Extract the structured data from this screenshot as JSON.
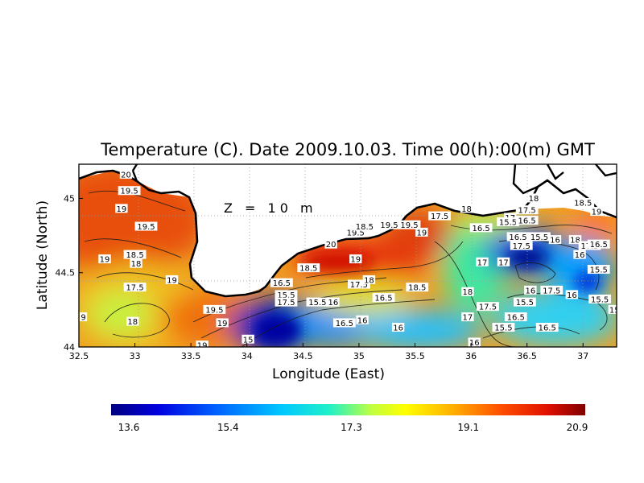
{
  "title": "Temperature (C). Date 2009.10.03. Time 00(h):00(m) GMT",
  "depth_label": "Z = 10 m",
  "xlabel": "Longitude (East)",
  "ylabel": "Latitude (North)",
  "x_ticks": [
    "32.5",
    "33",
    "33.5",
    "34",
    "34.5",
    "35",
    "35.5",
    "36",
    "36.5",
    "37"
  ],
  "y_ticks": [
    "44",
    "44.5",
    "45"
  ],
  "colorbar_ticks": [
    "13.6",
    "15.4",
    "17.3",
    "19.1",
    "20.9"
  ],
  "colors": {
    "background": "#ffffff",
    "land": "#ffffff",
    "coastline": "#000000",
    "contour": "#1a1a1a",
    "grid": "#9a9a9a"
  },
  "chart_data": {
    "type": "heatmap",
    "title": "Temperature (C). Date 2009.10.03. Time 00(h):00(m) GMT",
    "xlabel": "Longitude (East)",
    "ylabel": "Latitude (North)",
    "xlim": [
      32.5,
      37.3
    ],
    "ylim": [
      44.0,
      45.23
    ],
    "value_range": [
      13.6,
      20.9
    ],
    "colormap": [
      "#000080",
      "#0000e0",
      "#0060ff",
      "#00c8ff",
      "#20f0c8",
      "#c0ff40",
      "#ffff00",
      "#ffb000",
      "#ff5000",
      "#e01000",
      "#800000"
    ],
    "colorbar_ticks": [
      13.6,
      15.4,
      17.3,
      19.1,
      20.9
    ],
    "grid": true,
    "contour_labels": [
      {
        "text": "20",
        "lon": 32.92,
        "lat": 45.16
      },
      {
        "text": "19.5",
        "lon": 32.95,
        "lat": 45.05
      },
      {
        "text": "19",
        "lon": 32.88,
        "lat": 44.93
      },
      {
        "text": "19.5",
        "lon": 33.1,
        "lat": 44.81
      },
      {
        "text": "18.5",
        "lon": 33.0,
        "lat": 44.62
      },
      {
        "text": "18",
        "lon": 33.01,
        "lat": 44.56
      },
      {
        "text": "19",
        "lon": 32.73,
        "lat": 44.59
      },
      {
        "text": "17.5",
        "lon": 33.0,
        "lat": 44.4
      },
      {
        "text": "19",
        "lon": 33.33,
        "lat": 44.45
      },
      {
        "text": "18",
        "lon": 32.98,
        "lat": 44.17
      },
      {
        "text": "9",
        "lon": 32.54,
        "lat": 44.2
      },
      {
        "text": "19.5",
        "lon": 33.71,
        "lat": 44.25
      },
      {
        "text": "19",
        "lon": 33.78,
        "lat": 44.16
      },
      {
        "text": "19",
        "lon": 33.6,
        "lat": 44.01
      },
      {
        "text": "15",
        "lon": 34.01,
        "lat": 44.05
      },
      {
        "text": "16.5",
        "lon": 34.31,
        "lat": 44.43
      },
      {
        "text": "15.5",
        "lon": 34.35,
        "lat": 44.35
      },
      {
        "text": "17.5",
        "lon": 34.35,
        "lat": 44.3
      },
      {
        "text": "15.5",
        "lon": 34.63,
        "lat": 44.3
      },
      {
        "text": "16",
        "lon": 34.77,
        "lat": 44.3
      },
      {
        "text": "18.5",
        "lon": 34.55,
        "lat": 44.53
      },
      {
        "text": "20",
        "lon": 34.75,
        "lat": 44.69
      },
      {
        "text": "19.5",
        "lon": 34.97,
        "lat": 44.77
      },
      {
        "text": "18.5",
        "lon": 35.05,
        "lat": 44.81
      },
      {
        "text": "19.5",
        "lon": 35.27,
        "lat": 44.82
      },
      {
        "text": "19.5",
        "lon": 35.45,
        "lat": 44.82
      },
      {
        "text": "19",
        "lon": 35.56,
        "lat": 44.77
      },
      {
        "text": "19",
        "lon": 34.97,
        "lat": 44.59
      },
      {
        "text": "17.5",
        "lon": 35.0,
        "lat": 44.42
      },
      {
        "text": "18",
        "lon": 35.09,
        "lat": 44.45
      },
      {
        "text": "16.5",
        "lon": 35.22,
        "lat": 44.33
      },
      {
        "text": "18.5",
        "lon": 35.52,
        "lat": 44.4
      },
      {
        "text": "16.5",
        "lon": 34.87,
        "lat": 44.16
      },
      {
        "text": "16",
        "lon": 35.03,
        "lat": 44.18
      },
      {
        "text": "16",
        "lon": 35.35,
        "lat": 44.13
      },
      {
        "text": "17.5",
        "lon": 35.72,
        "lat": 44.88
      },
      {
        "text": "18",
        "lon": 35.96,
        "lat": 44.93
      },
      {
        "text": "16.5",
        "lon": 36.09,
        "lat": 44.8
      },
      {
        "text": "17",
        "lon": 36.1,
        "lat": 44.57
      },
      {
        "text": "17",
        "lon": 36.29,
        "lat": 44.57
      },
      {
        "text": "18",
        "lon": 35.97,
        "lat": 44.37
      },
      {
        "text": "17.5",
        "lon": 36.15,
        "lat": 44.27
      },
      {
        "text": "17",
        "lon": 35.97,
        "lat": 44.2
      },
      {
        "text": "16",
        "lon": 36.03,
        "lat": 44.03
      },
      {
        "text": "15.5",
        "lon": 36.29,
        "lat": 44.13
      },
      {
        "text": "16.5",
        "lon": 36.4,
        "lat": 44.2
      },
      {
        "text": "16.5",
        "lon": 36.68,
        "lat": 44.13
      },
      {
        "text": "15.5",
        "lon": 36.48,
        "lat": 44.3
      },
      {
        "text": "16",
        "lon": 36.53,
        "lat": 44.38
      },
      {
        "text": "17.5",
        "lon": 36.72,
        "lat": 44.38
      },
      {
        "text": "16",
        "lon": 36.9,
        "lat": 44.35
      },
      {
        "text": "15.5",
        "lon": 37.15,
        "lat": 44.32
      },
      {
        "text": "15.5",
        "lon": 37.14,
        "lat": 44.52
      },
      {
        "text": "16",
        "lon": 36.97,
        "lat": 44.62
      },
      {
        "text": "18",
        "lon": 36.93,
        "lat": 44.72
      },
      {
        "text": "17.5",
        "lon": 37.06,
        "lat": 44.68
      },
      {
        "text": "16.5",
        "lon": 37.14,
        "lat": 44.69
      },
      {
        "text": "19",
        "lon": 37.12,
        "lat": 44.91
      },
      {
        "text": "18.5",
        "lon": 37.0,
        "lat": 44.97
      },
      {
        "text": "18",
        "lon": 36.56,
        "lat": 45.0
      },
      {
        "text": "17.5",
        "lon": 36.5,
        "lat": 44.92
      },
      {
        "text": "17",
        "lon": 36.35,
        "lat": 44.87
      },
      {
        "text": "15.5",
        "lon": 36.33,
        "lat": 44.84
      },
      {
        "text": "16.5",
        "lon": 36.5,
        "lat": 44.85
      },
      {
        "text": "16.5",
        "lon": 36.42,
        "lat": 44.74
      },
      {
        "text": "17.5",
        "lon": 36.45,
        "lat": 44.68
      },
      {
        "text": "15.5",
        "lon": 36.61,
        "lat": 44.74
      },
      {
        "text": "16",
        "lon": 36.75,
        "lat": 44.72
      },
      {
        "text": "15",
        "lon": 37.28,
        "lat": 44.25
      }
    ]
  }
}
